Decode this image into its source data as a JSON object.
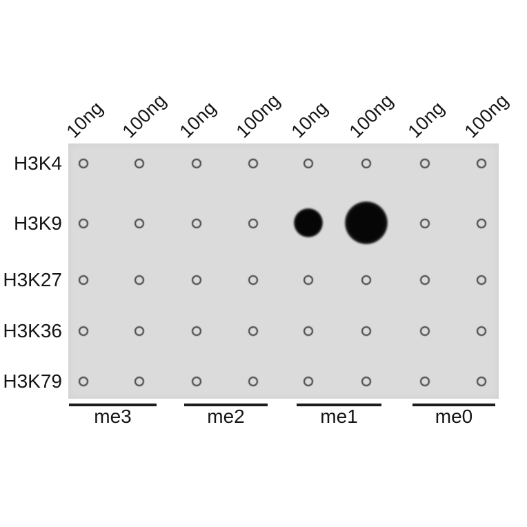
{
  "figure_type": "dot-blot",
  "blot": {
    "membrane_color": "#dbdbdc",
    "ring_color": "#3f3f3f",
    "spot_color": "#0a0a0a",
    "bar_color": "#1c1c1c",
    "text_color": "#141414",
    "row_labels": [
      "H3K4",
      "H3K9",
      "H3K27",
      "H3K36",
      "H3K79"
    ],
    "col_labels": [
      "10ng",
      "100ng",
      "10ng",
      "100ng",
      "10ng",
      "100ng",
      "10ng",
      "100ng"
    ],
    "group_labels": [
      "me3",
      "me2",
      "me1",
      "me0"
    ]
  },
  "chart_data": {
    "type": "heatmap",
    "rows": [
      "H3K4",
      "H3K9",
      "H3K27",
      "H3K36",
      "H3K79"
    ],
    "column_groups": [
      {
        "label": "me3",
        "columns": [
          "10ng",
          "100ng"
        ]
      },
      {
        "label": "me2",
        "columns": [
          "10ng",
          "100ng"
        ]
      },
      {
        "label": "me1",
        "columns": [
          "10ng",
          "100ng"
        ]
      },
      {
        "label": "me0",
        "columns": [
          "10ng",
          "100ng"
        ]
      }
    ],
    "values": [
      [
        0,
        0,
        0,
        0,
        0,
        0,
        0,
        0
      ],
      [
        0,
        0,
        0,
        0,
        0.68,
        1,
        0,
        0
      ],
      [
        0,
        0,
        0,
        0,
        0,
        0,
        0,
        0
      ],
      [
        0,
        0,
        0,
        0,
        0,
        0,
        0,
        0
      ],
      [
        0,
        0,
        0,
        0,
        0,
        0,
        0,
        0
      ]
    ],
    "value_meaning": "relative spot intensity (0 = blank printed circle, 1 = strongest signal)",
    "positive_cells": [
      {
        "row": "H3K9",
        "group": "me1",
        "amount": "10ng",
        "intensity": 0.68
      },
      {
        "row": "H3K9",
        "group": "me1",
        "amount": "100ng",
        "intensity": 1.0
      }
    ]
  }
}
